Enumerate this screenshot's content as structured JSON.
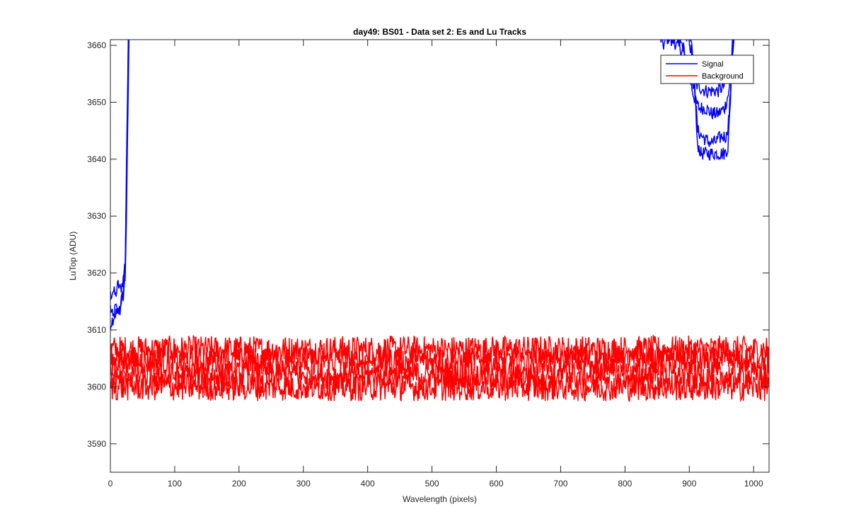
{
  "chart_data": {
    "type": "line",
    "title": "day49: BS01 - Data set 2: Es and Lu Tracks",
    "xlabel": "Wavelength (pixels)",
    "ylabel": "LuTop (ADU)",
    "xlim": [
      0,
      1024
    ],
    "ylim": [
      3585,
      3661
    ],
    "xticks": [
      0,
      100,
      200,
      300,
      400,
      500,
      600,
      700,
      800,
      900,
      1000
    ],
    "yticks": [
      3590,
      3600,
      3610,
      3620,
      3630,
      3640,
      3650,
      3660
    ],
    "grid": false,
    "legend_position": "top-right",
    "series": [
      {
        "name": "Signal",
        "color": "#0000ff",
        "traces": [
          [
            [
              0,
              3614
            ],
            [
              4,
              3612
            ],
            [
              8,
              3614
            ],
            [
              12,
              3613
            ],
            [
              16,
              3615
            ],
            [
              20,
              3616
            ],
            [
              23,
              3619
            ],
            [
              25,
              3630
            ],
            [
              27,
              3645
            ],
            [
              29,
              3662
            ]
          ],
          [
            [
              0,
              3616
            ],
            [
              4,
              3617
            ],
            [
              8,
              3616
            ],
            [
              12,
              3618
            ],
            [
              16,
              3617
            ],
            [
              20,
              3619
            ],
            [
              23,
              3622
            ],
            [
              25,
              3635
            ],
            [
              27,
              3650
            ],
            [
              28,
              3662
            ]
          ],
          [
            [
              0,
              3611
            ],
            [
              4,
              3612
            ],
            [
              8,
              3613
            ],
            [
              12,
              3613
            ],
            [
              16,
              3614
            ],
            [
              20,
              3617
            ],
            [
              23,
              3621
            ],
            [
              25,
              3638
            ],
            [
              27,
              3655
            ],
            [
              28,
              3662
            ]
          ],
          [
            [
              852,
              3662
            ],
            [
              860,
              3660
            ],
            [
              870,
              3662
            ],
            [
              880,
              3660
            ],
            [
              890,
              3659
            ],
            [
              895,
              3657
            ],
            [
              900,
              3655
            ],
            [
              905,
              3652
            ],
            [
              910,
              3650
            ],
            [
              915,
              3649
            ],
            [
              925,
              3649
            ],
            [
              935,
              3648
            ],
            [
              945,
              3648
            ],
            [
              955,
              3649
            ],
            [
              962,
              3652
            ],
            [
              965,
              3656
            ],
            [
              968,
              3660
            ],
            [
              970,
              3662
            ]
          ],
          [
            [
              862,
              3662
            ],
            [
              870,
              3661
            ],
            [
              880,
              3661
            ],
            [
              890,
              3660
            ],
            [
              900,
              3655
            ],
            [
              905,
              3653
            ],
            [
              912,
              3653
            ],
            [
              925,
              3652
            ],
            [
              935,
              3652
            ],
            [
              945,
              3652
            ],
            [
              955,
              3653
            ],
            [
              963,
              3656
            ],
            [
              967,
              3660
            ],
            [
              969,
              3662
            ]
          ],
          [
            [
              895,
              3662
            ],
            [
              903,
              3660
            ],
            [
              908,
              3655
            ],
            [
              912,
              3643
            ],
            [
              918,
              3641
            ],
            [
              925,
              3641
            ],
            [
              935,
              3641
            ],
            [
              945,
              3641
            ],
            [
              955,
              3641
            ],
            [
              960,
              3642
            ],
            [
              963,
              3648
            ],
            [
              966,
              3656
            ],
            [
              968,
              3660
            ],
            [
              970,
              3662
            ]
          ],
          [
            [
              898,
              3662
            ],
            [
              905,
              3658
            ],
            [
              910,
              3650
            ],
            [
              913,
              3645
            ],
            [
              920,
              3644
            ],
            [
              930,
              3643
            ],
            [
              940,
              3643
            ],
            [
              950,
              3644
            ],
            [
              958,
              3644
            ],
            [
              962,
              3648
            ],
            [
              966,
              3656
            ],
            [
              969,
              3662
            ]
          ]
        ]
      },
      {
        "name": "Background",
        "color": "#ff0000",
        "traces": [
          [
            [
              0,
              3606.5
            ],
            [
              1024,
              3606.5
            ]
          ],
          [
            [
              0,
              3604.5
            ],
            [
              1024,
              3604.5
            ]
          ],
          [
            [
              0,
              3602
            ],
            [
              1024,
              3602
            ]
          ],
          [
            [
              0,
              3600
            ],
            [
              1024,
              3600
            ]
          ]
        ],
        "noise_amplitude": 2.5
      }
    ]
  }
}
